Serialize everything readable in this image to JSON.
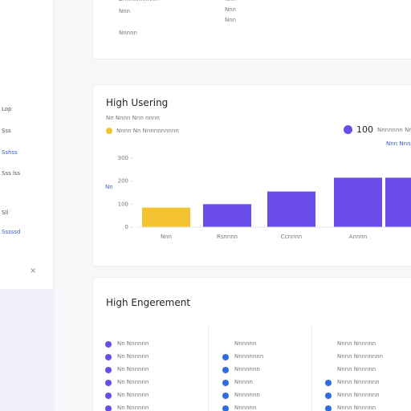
{
  "sidebar": {
    "items": [
      "Lop",
      "Sss",
      "Sshss",
      "Sss lss",
      "Sll",
      "Sssssd"
    ],
    "close": "×"
  },
  "top_card": {
    "left": [
      "Bnnnnnnnnnn",
      "Nnn",
      "Nnnnn"
    ],
    "right": [
      "Nnn",
      "Nnn",
      "Nnn"
    ]
  },
  "usage": {
    "title": "High Usering",
    "subtitle": "Nn Nnnn Nnn nnnn",
    "legend": "Nnnn Nn Nnnnnnnnnn",
    "stat": "100",
    "stat_label": "Nnnnnnn Nn",
    "sub_legend": "Nnn Nnn",
    "axis_label": "Nn",
    "chart_data": {
      "type": "bar",
      "categories": [
        "Nnn",
        "Rsnnnn",
        "Ccnnnn",
        "Annnn",
        null
      ],
      "values": [
        85,
        100,
        155,
        215,
        215
      ],
      "colors": [
        "#f4c430",
        "#6a4de8",
        "#6a4de8",
        "#6a4de8",
        "#6a4de8"
      ],
      "ylim": [
        0,
        300
      ],
      "yticks": [
        0,
        100,
        200,
        300
      ]
    }
  },
  "engagement": {
    "title": "High Engerement",
    "columns": [
      [
        "Nn Nnnnnn",
        "Nn Nnnnnn",
        "Nn Nnnnnn",
        "Nn Nnnnnn",
        "Nn Nnnnnn",
        "Nn Nnnnnn"
      ],
      [
        "Nnnnnn",
        "Nnnnnnnn",
        "Nnnnnnn",
        "Nnnnn",
        "Nnnnnnn",
        "Nnnnnn"
      ],
      [
        "Nnnn Nnnnnn",
        "Nnnn Nnnnnnnn",
        "Nnnn Nnnnnn",
        "Nnnn Nnnnnnn",
        "Nnnn Nnnnnnn",
        "Nnnn Nnnnnn"
      ]
    ]
  }
}
